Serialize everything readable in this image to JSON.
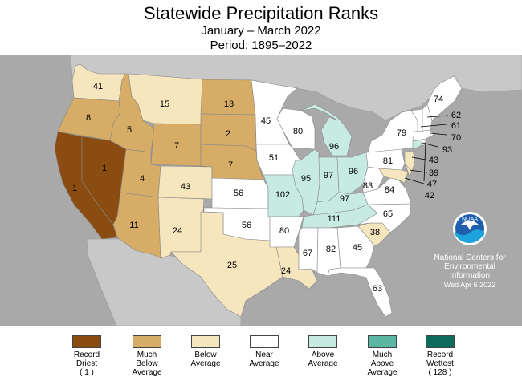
{
  "header": {
    "title": "Statewide Precipitation Ranks",
    "subtitle_period": "January – March 2022",
    "subtitle_range": "Period: 1895–2022"
  },
  "colors": {
    "record_driest": "#8B4C12",
    "much_below": "#D6AC66",
    "below": "#F6E6BE",
    "near": "#FFFFFF",
    "above": "#C7EBE3",
    "much_above": "#5BB7A4",
    "record_wettest": "#0E6B5B",
    "background": "#A9A9A9",
    "ocean": "#A9A9A9",
    "canada_mexico": "#C8C8C8"
  },
  "legend": [
    {
      "label": "Record\nDriest\n( 1 )",
      "color": "#8B4C12"
    },
    {
      "label": "Much\nBelow\nAverage",
      "color": "#D6AC66"
    },
    {
      "label": "Below\nAverage",
      "color": "#F6E6BE"
    },
    {
      "label": "Near\nAverage",
      "color": "#FFFFFF"
    },
    {
      "label": "Above\nAverage",
      "color": "#C7EBE3"
    },
    {
      "label": "Much\nAbove\nAverage",
      "color": "#5BB7A4"
    },
    {
      "label": "Record\nWettest\n( 128 )",
      "color": "#0E6B5B"
    }
  ],
  "states": {
    "WA": "41",
    "OR": "8",
    "ID": "5",
    "MT": "15",
    "ND": "13",
    "SD": "2",
    "WY": "7",
    "NE": "7",
    "NV": "1",
    "CA": "1",
    "UT": "4",
    "CO": "43",
    "AZ": "11",
    "NM": "24",
    "KS": "56",
    "OK": "56",
    "TX": "25",
    "MN": "45",
    "IA": "51",
    "MO": "102",
    "AR": "80",
    "LA": "24",
    "WI": "80",
    "IL": "95",
    "MI": "96",
    "IN": "97",
    "OH": "96",
    "KY": "97",
    "TN": "111",
    "MS": "67",
    "AL": "82",
    "GA": "45",
    "FL": "63",
    "SC": "38",
    "NC": "65",
    "VA": "84",
    "WV": "83",
    "PA": "81",
    "NY": "79",
    "ME": "74",
    "NH": "62",
    "VT": "61",
    "MA": "70",
    "CT": "93",
    "NJ": "43",
    "DE": "39",
    "MD": "47",
    "RI": "42"
  },
  "noaa": {
    "logo_text": "NOAA",
    "credit": "National Centers for\nEnvironmental\nInformation",
    "date": "Wed Apr  6 2022"
  }
}
